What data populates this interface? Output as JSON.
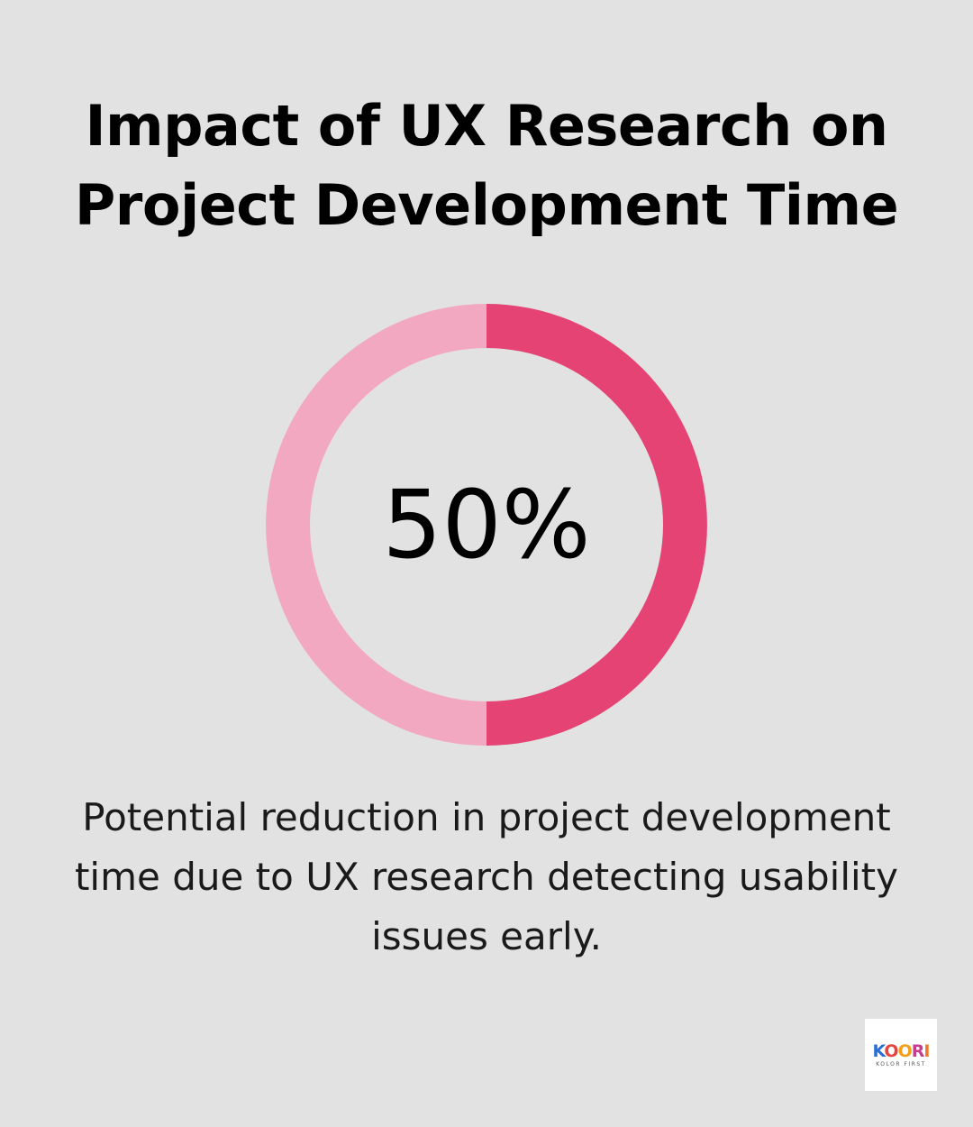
{
  "title": {
    "line1": "Impact of UX Research on",
    "line2": "Project Development Time"
  },
  "chart_data": {
    "type": "pie",
    "variant": "donut",
    "value": 50,
    "value_label": "50%",
    "slices": [
      {
        "value": 50,
        "color": "#e44373"
      },
      {
        "value": 50,
        "color": "#f2a8c0"
      }
    ]
  },
  "caption": {
    "line1": "Potential reduction in project development",
    "line2": "time due to UX research detecting usability",
    "line3": "issues early."
  },
  "logo": {
    "wordmark": "KOORI",
    "tagline": "KOLOR FIRST"
  },
  "colors": {
    "background": "#e1e2e1",
    "accent": "#e44373",
    "accent_light": "#f2a8c0"
  }
}
